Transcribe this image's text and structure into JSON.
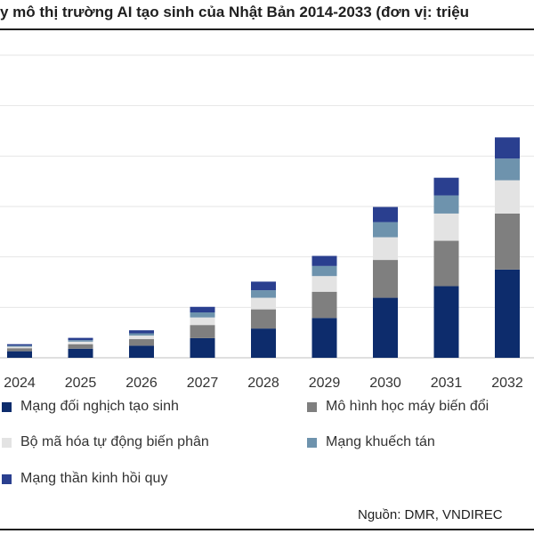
{
  "header": {
    "title": "y mô thị trường AI tạo sinh của Nhật Bản 2014-2033 (đơn vị: triệu"
  },
  "footer": {
    "source": "Nguồn: DMR, VNDIREC"
  },
  "chart_data": {
    "type": "bar",
    "stacked": true,
    "title": "y mô thị trường AI tạo sinh của Nhật Bản 2014-2033 (đơn vị: triệu",
    "categories": [
      "2024",
      "2025",
      "2026",
      "2027",
      "2028",
      "2029",
      "2030",
      "2031",
      "2032"
    ],
    "ylim": [
      0,
      6000
    ],
    "grid": true,
    "legend_position": "bottom",
    "series": [
      {
        "name": "Mạng đối nghịch tạo sinh",
        "color": "#0d2c6c",
        "values": [
          130,
          180,
          240,
          390,
          580,
          790,
          1190,
          1420,
          1750
        ]
      },
      {
        "name": "Mô hình học máy biến đổi",
        "color": "#7f7f7f",
        "values": [
          60,
          90,
          130,
          260,
          380,
          520,
          750,
          900,
          1110
        ]
      },
      {
        "name": "Bộ mã hóa tự động biến phân",
        "color": "#e3e3e3",
        "values": [
          30,
          50,
          70,
          150,
          230,
          310,
          450,
          540,
          660
        ]
      },
      {
        "name": "Mạng khuếch tán",
        "color": "#6e93ad",
        "values": [
          20,
          30,
          45,
          100,
          150,
          200,
          300,
          360,
          430
        ]
      },
      {
        "name": "Mạng thần kinh hồi quy",
        "color": "#2a3f8f",
        "values": [
          30,
          45,
          60,
          110,
          170,
          200,
          300,
          350,
          420
        ]
      }
    ]
  }
}
